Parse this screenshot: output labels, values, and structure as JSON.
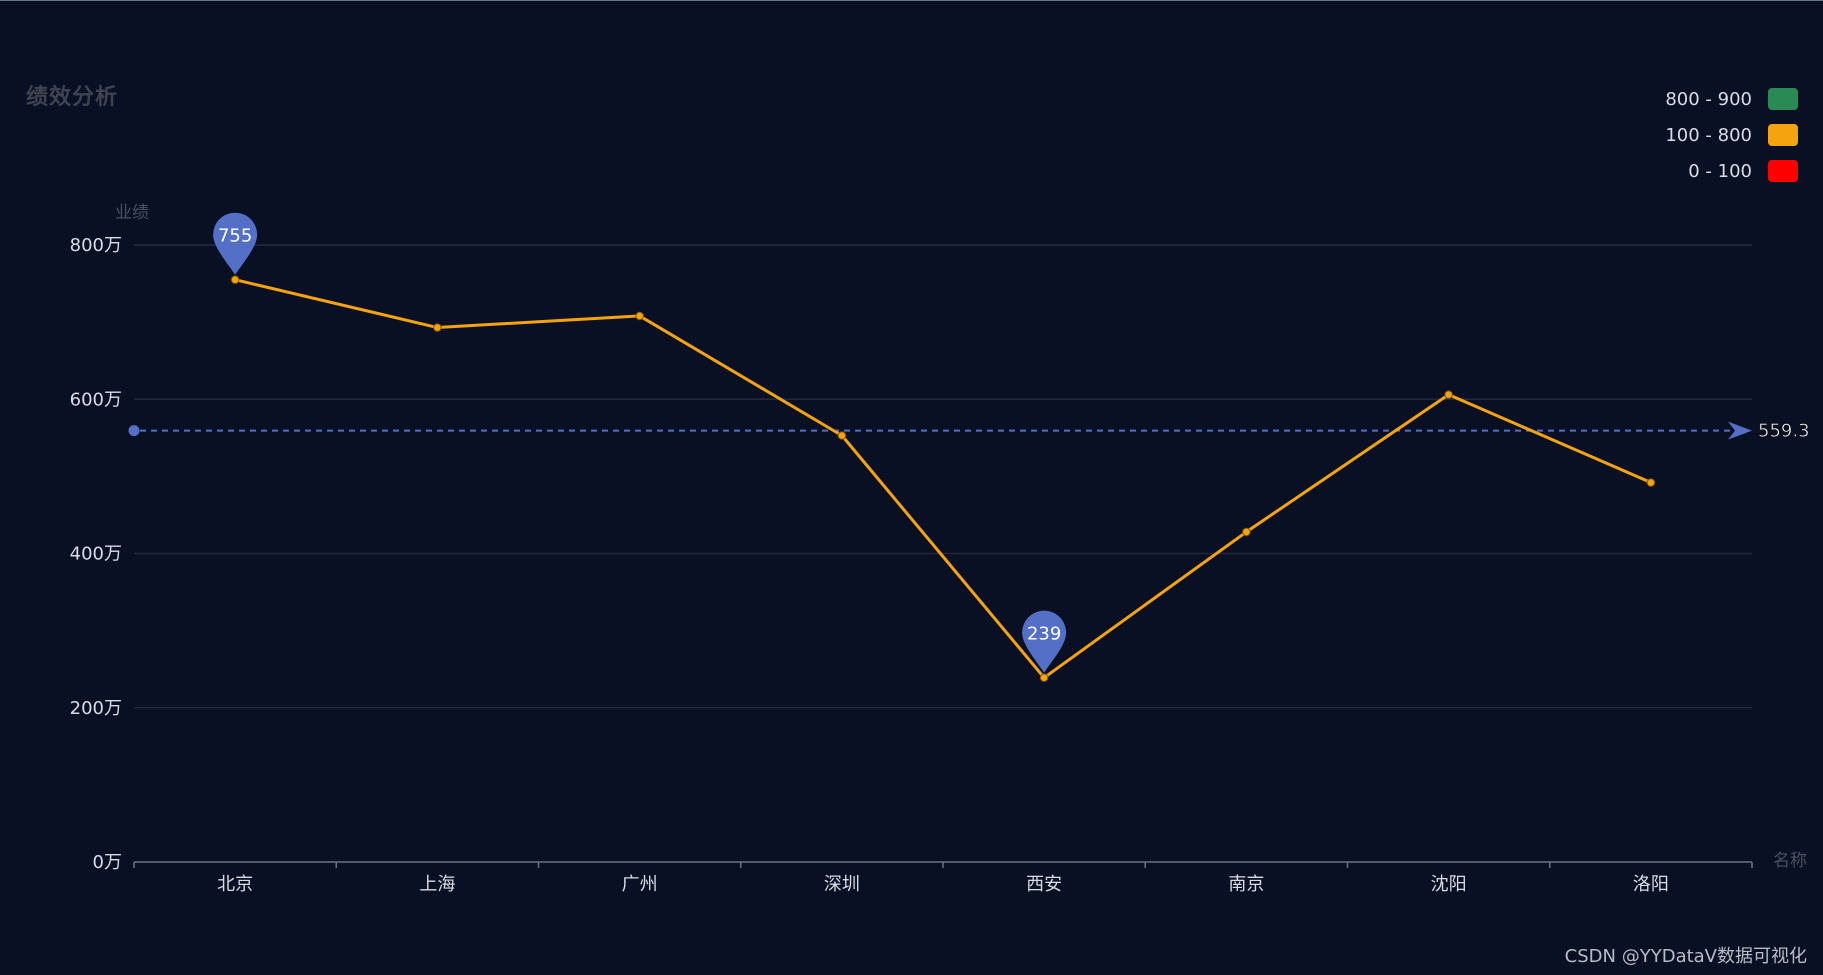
{
  "chart_data": {
    "type": "line",
    "title": "绩效分析",
    "ylabel": "业绩",
    "xlabel": "名称",
    "categories": [
      "北京",
      "上海",
      "广州",
      "深圳",
      "西安",
      "南京",
      "沈阳",
      "洛阳"
    ],
    "series": [
      {
        "values": [
          755,
          693,
          708,
          553,
          239,
          428,
          606,
          492
        ],
        "color": "#f5a30f"
      }
    ],
    "ylim": [
      0,
      800
    ],
    "y_ticks": [
      0,
      200,
      400,
      600,
      800
    ],
    "y_tick_suffix": "万",
    "grid": true,
    "mark_points": [
      {
        "label": "755",
        "category": "北京",
        "value": 755
      },
      {
        "label": "239",
        "category": "西安",
        "value": 239
      }
    ],
    "mark_line": {
      "label": "559.3",
      "value": 559.3,
      "style": "dashed",
      "color": "#5470c6"
    },
    "visual_map": [
      {
        "label": "800 - 900",
        "color": "#2a8a54"
      },
      {
        "label": "100 - 800",
        "color": "#f5a30f"
      },
      {
        "label": "0 - 100",
        "color": "#ff0000"
      }
    ]
  },
  "watermark": "CSDN @YYDataV数据可视化"
}
